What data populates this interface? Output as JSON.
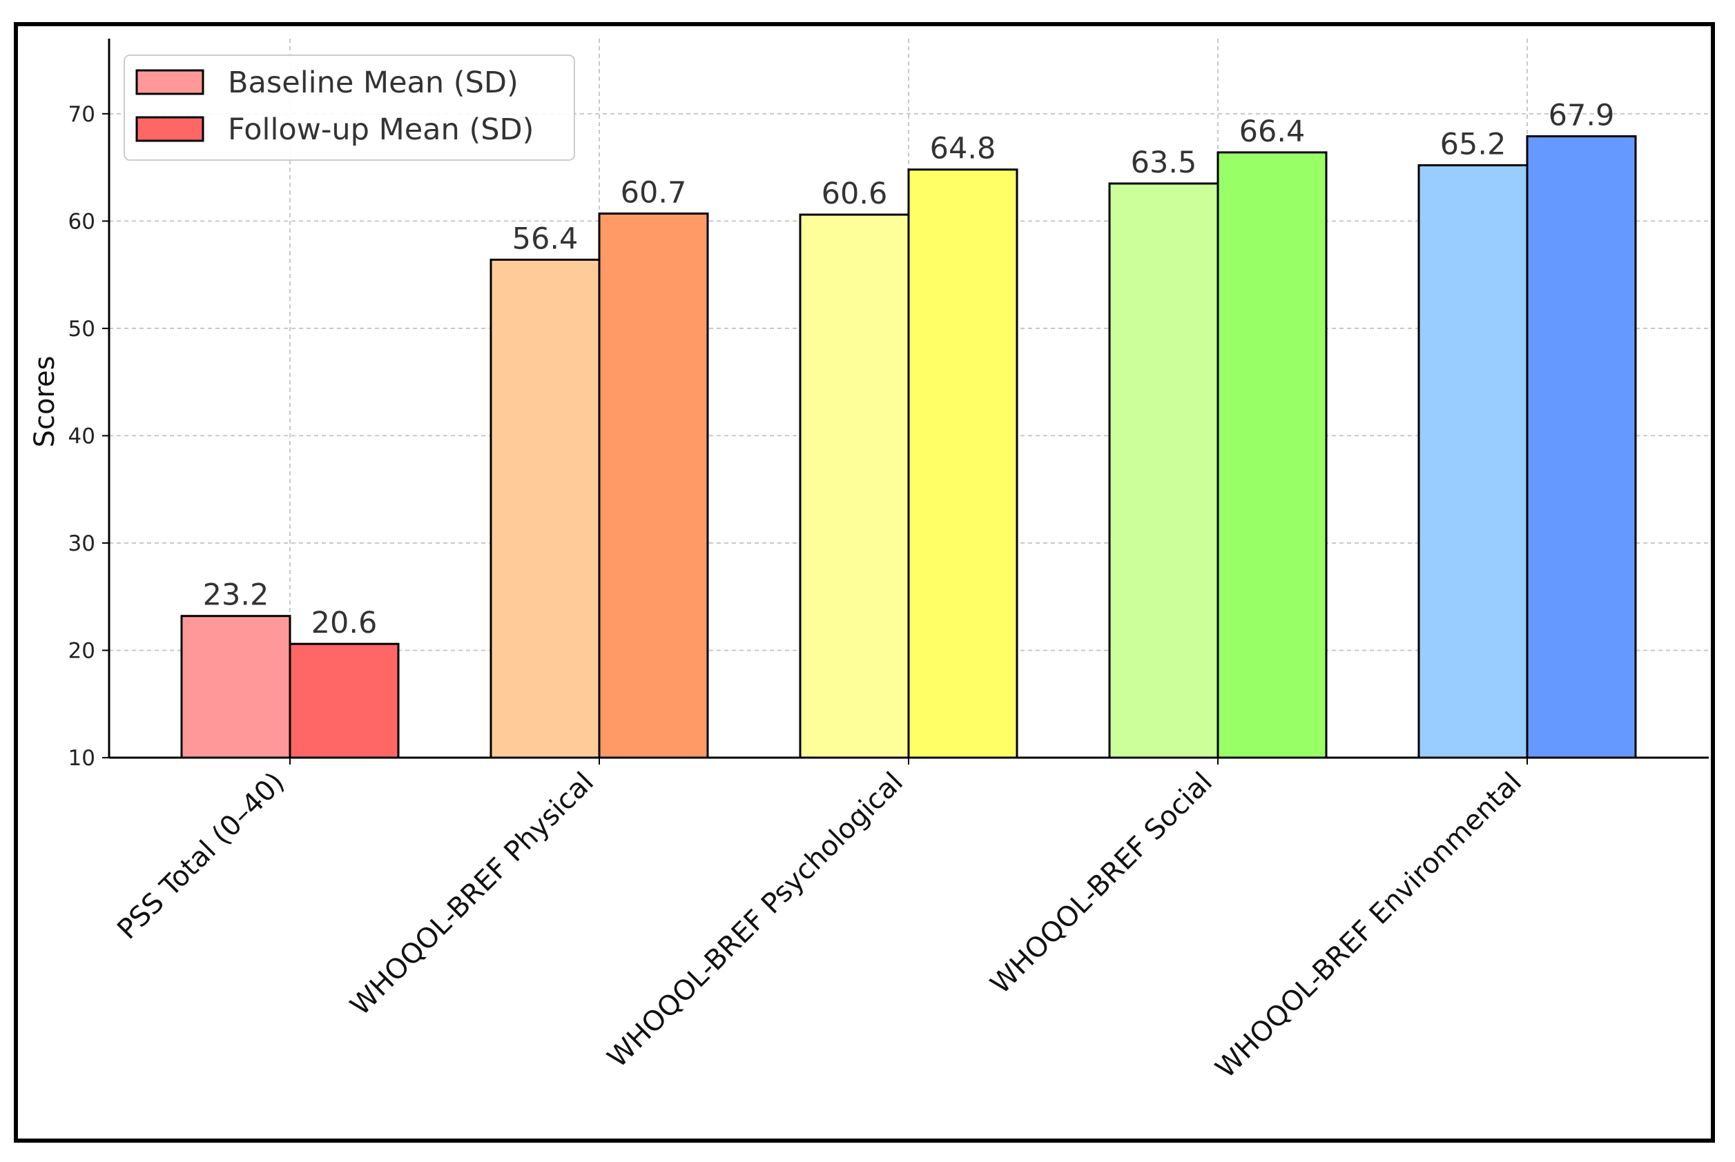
{
  "chart_data": {
    "type": "bar",
    "categories": [
      "PSS Total (0–40)",
      "WHOQOL-BREF Physical",
      "WHOQOL-BREF Psychological",
      "WHOQOL-BREF Social",
      "WHOQOL-BREF Environmental"
    ],
    "series": [
      {
        "name": "Baseline Mean (SD)",
        "values": [
          23.2,
          56.4,
          60.6,
          63.5,
          65.2
        ],
        "colors": [
          "#ff9999",
          "#ffcc99",
          "#ffff99",
          "#ccff99",
          "#99ccff"
        ]
      },
      {
        "name": "Follow-up Mean (SD)",
        "values": [
          20.6,
          60.7,
          64.8,
          66.4,
          67.9
        ],
        "colors": [
          "#ff6666",
          "#ff9966",
          "#ffff66",
          "#99ff66",
          "#6699ff"
        ]
      }
    ],
    "value_labels": [
      [
        "23.2",
        "56.4",
        "60.6",
        "63.5",
        "65.2"
      ],
      [
        "20.6",
        "60.7",
        "64.8",
        "66.4",
        "67.9"
      ]
    ],
    "title": "",
    "xlabel": "",
    "ylabel": "Scores",
    "ylim": [
      10,
      77
    ],
    "yticks": [
      10,
      20,
      30,
      40,
      50,
      60,
      70
    ],
    "grid": true,
    "legend_position": "top-left"
  }
}
